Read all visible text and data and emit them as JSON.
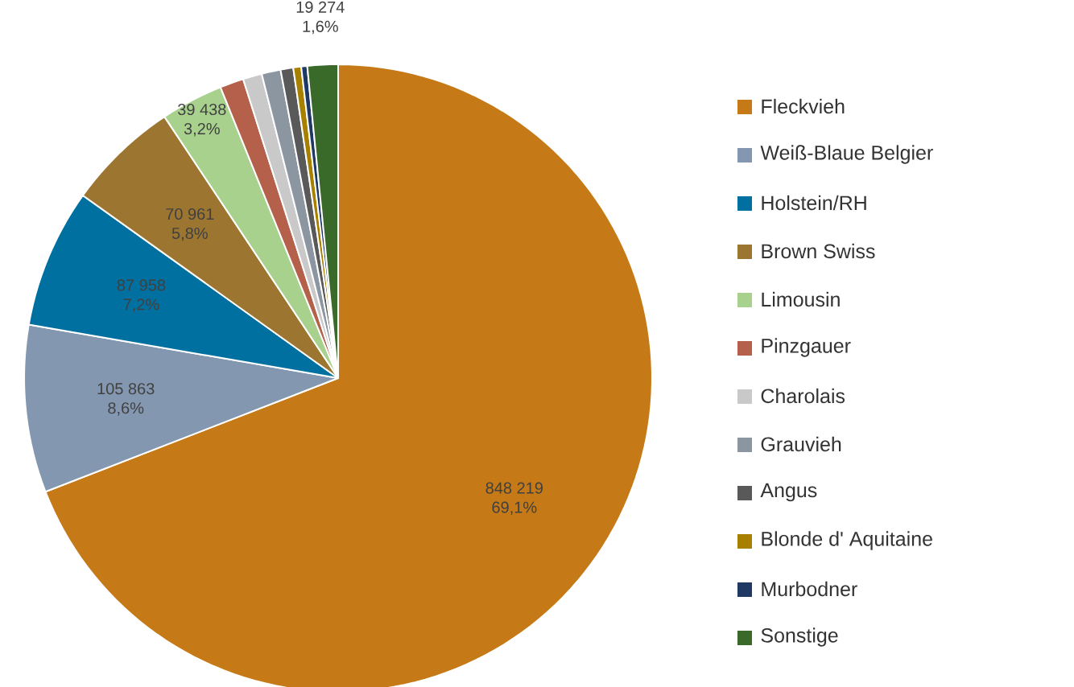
{
  "chart_data": {
    "type": "pie",
    "legend": "right",
    "categories": [
      "Fleckvieh",
      "Weiß-Blaue Belgier",
      "Holstein/RH",
      "Brown Swiss",
      "Limousin",
      "Pinzgauer",
      "Charolais",
      "Grauvieh",
      "Angus",
      "Blonde d' Aquitaine",
      "Murbodner",
      "Sonstige"
    ],
    "values": [
      848219,
      105863,
      87958,
      70961,
      39438,
      15000,
      12000,
      12000,
      8000,
      5000,
      3800,
      19274
    ],
    "colors": [
      "#c57a17",
      "#8497b0",
      "#0070a0",
      "#9c7531",
      "#a9d18e",
      "#b4604a",
      "#c9c9c9",
      "#8c96a0",
      "#595959",
      "#a88000",
      "#203864",
      "#3a6a2a"
    ],
    "value_labels": [
      "848 219 69,1%",
      "105 863 8,6%",
      "87 958 7,2%",
      "70 961 5,8%",
      "39 438 3,2%",
      null,
      null,
      null,
      null,
      null,
      null,
      "19 274 1,6%"
    ]
  }
}
